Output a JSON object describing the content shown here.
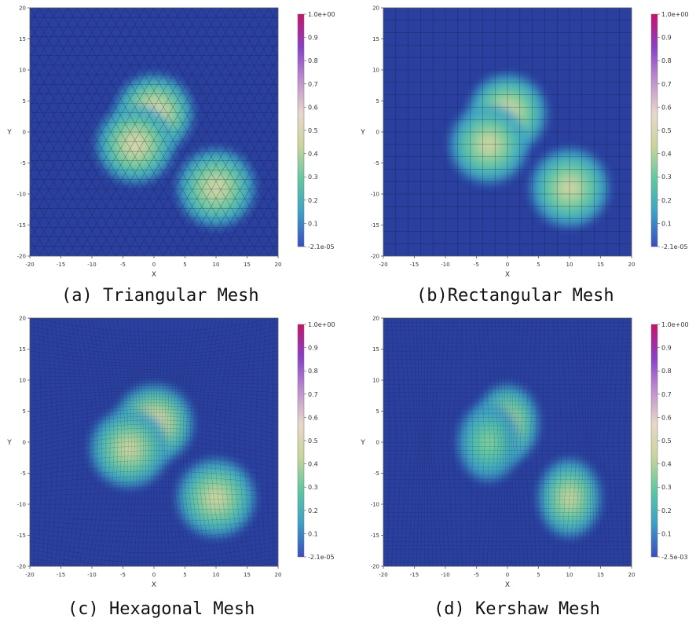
{
  "figure": {
    "panels": [
      {
        "caption": "(a) Triangular Mesh",
        "mesh": "triangular",
        "chart_data": {
          "type": "heatmap",
          "xlabel": "X",
          "ylabel": "Y",
          "xlim": [
            -20,
            20
          ],
          "ylim": [
            -20,
            20
          ],
          "xticks": [
            -20,
            -15,
            -10,
            -5,
            0,
            5,
            10,
            15,
            20
          ],
          "yticks": [
            -20,
            -15,
            -10,
            -5,
            0,
            5,
            10,
            15,
            20
          ],
          "colorbar": {
            "min_label": "-2.1e-05",
            "max_label": "1.0e+00",
            "ticks": [
              0.9,
              0.8,
              0.7,
              0.6,
              0.5,
              0.4,
              0.3,
              0.2,
              0.1
            ]
          },
          "blobs": [
            {
              "x": 0,
              "y": 3,
              "peak": 0.6
            },
            {
              "x": -3,
              "y": -2,
              "peak": 0.55
            },
            {
              "x": 10,
              "y": -9,
              "peak": 0.52
            }
          ]
        }
      },
      {
        "caption": "(b)Rectangular Mesh",
        "mesh": "rectangular",
        "chart_data": {
          "type": "heatmap",
          "xlabel": "X",
          "ylabel": "Y",
          "xlim": [
            -20,
            20
          ],
          "ylim": [
            -20,
            20
          ],
          "xticks": [
            -20,
            -15,
            -10,
            -5,
            0,
            5,
            10,
            15,
            20
          ],
          "yticks": [
            -20,
            -15,
            -10,
            -5,
            0,
            5,
            10,
            15,
            20
          ],
          "colorbar": {
            "min_label": "-2.1e-05",
            "max_label": "1.0e+00",
            "ticks": [
              0.9,
              0.8,
              0.7,
              0.6,
              0.5,
              0.4,
              0.3,
              0.2,
              0.1
            ]
          },
          "blobs": [
            {
              "x": 0,
              "y": 3,
              "peak": 0.55
            },
            {
              "x": -3,
              "y": -2,
              "peak": 0.5
            },
            {
              "x": 10,
              "y": -9,
              "peak": 0.5
            }
          ]
        }
      },
      {
        "caption": "(c) Hexagonal Mesh",
        "mesh": "hexagonal",
        "chart_data": {
          "type": "heatmap",
          "xlabel": "X",
          "ylabel": "Y",
          "xlim": [
            -20,
            20
          ],
          "ylim": [
            -20,
            20
          ],
          "xticks": [
            -20,
            -15,
            -10,
            -5,
            0,
            5,
            10,
            15,
            20
          ],
          "yticks": [
            -20,
            -15,
            -10,
            -5,
            0,
            5,
            10,
            15,
            20
          ],
          "colorbar": {
            "min_label": "-2.1e-05",
            "max_label": "1.0e+00",
            "ticks": [
              0.9,
              0.8,
              0.7,
              0.6,
              0.5,
              0.4,
              0.3,
              0.2,
              0.1
            ]
          },
          "blobs": [
            {
              "x": 0,
              "y": 3,
              "peak": 0.6
            },
            {
              "x": -4,
              "y": -1,
              "peak": 0.5
            },
            {
              "x": 10,
              "y": -9,
              "peak": 0.5
            }
          ]
        }
      },
      {
        "caption": "(d) Kershaw Mesh",
        "mesh": "kershaw",
        "chart_data": {
          "type": "heatmap",
          "xlabel": "X",
          "ylabel": "Y",
          "xlim": [
            -20,
            20
          ],
          "ylim": [
            -20,
            20
          ],
          "xticks": [
            -20,
            -15,
            -10,
            -5,
            0,
            5,
            10,
            15,
            20
          ],
          "yticks": [
            -20,
            -15,
            -10,
            -5,
            0,
            5,
            10,
            15,
            20
          ],
          "colorbar": {
            "min_label": "-2.5e-03",
            "max_label": "1.0e+00",
            "ticks": [
              0.9,
              0.8,
              0.7,
              0.6,
              0.5,
              0.4,
              0.3,
              0.2,
              0.1
            ]
          },
          "blobs": [
            {
              "x": 0,
              "y": 3,
              "peak": 0.5
            },
            {
              "x": -3,
              "y": 0,
              "peak": 0.35
            },
            {
              "x": 10,
              "y": -9,
              "peak": 0.48
            }
          ]
        }
      }
    ]
  },
  "colors": {
    "background": "#2a3f9e",
    "colormap": [
      "#3b4cc0",
      "#3aa0c9",
      "#5cc8a0",
      "#c8d49a",
      "#e8d8c8",
      "#c08fd0",
      "#8a3fc8",
      "#c8126a"
    ],
    "mesh_line": "#0f1a40"
  }
}
